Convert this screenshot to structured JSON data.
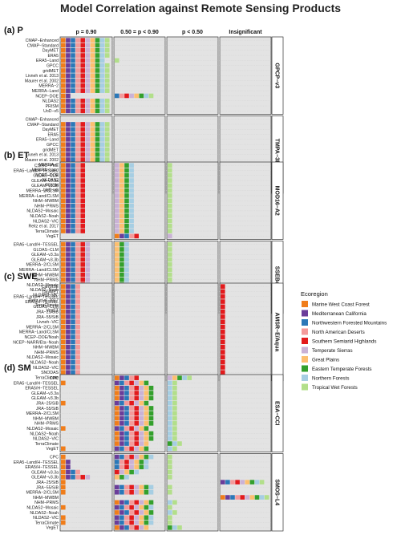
{
  "chart_data": {
    "type": "heatmap",
    "title": "Model Correlation against Remote Sensing Products",
    "columns": [
      "p = 0.90",
      "0.50 = p < 0.90",
      "p < 0.50",
      "Insignificant"
    ],
    "legend": {
      "title": "Ecoregion",
      "placement": "right",
      "items": [
        {
          "name": "Marine West Coast Forest",
          "color": "#f07d1a"
        },
        {
          "name": "Mediterranean California",
          "color": "#6a3d9a"
        },
        {
          "name": "Northwestern Forested Mountains",
          "color": "#2b78b8"
        },
        {
          "name": "North American Deserts",
          "color": "#f49a9a"
        },
        {
          "name": "Southern Semiarid Highlands",
          "color": "#e31a1c"
        },
        {
          "name": "Temperate Sierras",
          "color": "#cab2d6"
        },
        {
          "name": "Great Plains",
          "color": "#fdbf6f"
        },
        {
          "name": "Eastern Temperate Forests",
          "color": "#33a02c"
        },
        {
          "name": "Northern Forests",
          "color": "#a6cee3"
        },
        {
          "name": "Tropical Wet Forests",
          "color": "#b2df8a"
        }
      ]
    },
    "sections": [
      {
        "label": "(a) P",
        "panels": [
          {
            "product": "GPCP−v3",
            "models": [
              "CMAP−Enhanced",
              "CMAP−Standard",
              "DayMET",
              "ERA5",
              "ERA5−Land",
              "GPCC",
              "gridMET",
              "Livneh et al. 2013",
              "Maurer et al. 2002",
              "MERRA−2",
              "MERRA−Land",
              "NCEP−DOE",
              "NLDAS2",
              "PRISM",
              "UoD−v5"
            ],
            "cells": [
              [
                10,
                0,
                0,
                0
              ],
              [
                10,
                0,
                0,
                0
              ],
              [
                10,
                0,
                0,
                0
              ],
              [
                10,
                0,
                0,
                0
              ],
              [
                9,
                1,
                0,
                0
              ],
              [
                10,
                0,
                0,
                0
              ],
              [
                10,
                0,
                0,
                0
              ],
              [
                10,
                0,
                0,
                0
              ],
              [
                10,
                0,
                0,
                0
              ],
              [
                10,
                0,
                0,
                0
              ],
              [
                10,
                0,
                0,
                0
              ],
              [
                2,
                8,
                0,
                0
              ],
              [
                10,
                0,
                0,
                0
              ],
              [
                10,
                0,
                0,
                0
              ],
              [
                10,
                0,
                0,
                0
              ]
            ]
          },
          {
            "product": "TMPA−3B43",
            "models": [
              "CMAP−Enhanced",
              "CMAP−Standard",
              "DayMET",
              "ERA5",
              "ERA5−Land",
              "GPCC",
              "gridMET",
              "Livneh et al. 2013",
              "Maurer et al. 2002",
              "MERRA−2",
              "MERRA−Land",
              "NCEP−DOE",
              "NLDAS2",
              "PRISM",
              "UoD−v5"
            ],
            "cells": [
              [
                0,
                0,
                0,
                0
              ],
              [
                10,
                0,
                0,
                0
              ],
              [
                10,
                0,
                0,
                0
              ],
              [
                10,
                0,
                0,
                0
              ],
              [
                10,
                0,
                0,
                0
              ],
              [
                10,
                0,
                0,
                0
              ],
              [
                10,
                0,
                0,
                0
              ],
              [
                10,
                0,
                0,
                0
              ],
              [
                10,
                0,
                0,
                0
              ],
              [
                10,
                0,
                0,
                10
              ],
              [
                10,
                0,
                0,
                0
              ],
              [
                1,
                9,
                0,
                0
              ],
              [
                10,
                0,
                0,
                0
              ],
              [
                10,
                0,
                0,
                0
              ],
              [
                10,
                0,
                0,
                0
              ]
            ]
          }
        ]
      },
      {
        "label": "(b) ET",
        "panels": [
          {
            "product": "MOD16−A2",
            "models": [
              "CSIRO−PML",
              "ERA5−Land/H−TESSEL",
              "GLDAS−CLM",
              "GLEAM−v3.3a",
              "GLEAM−v3.3b",
              "MERRA−2/CLSM",
              "MERRA−Land/CLSM",
              "NHM−MWBM",
              "NHM−PRMS",
              "NLDAS2−Mosaic",
              "NLDAS2−Noah",
              "NLDAS2−VIC",
              "Reitz et al. 2017",
              "TerraClimate",
              "VegET"
            ],
            "cells": [
              [
                5,
                4,
                1,
                0
              ],
              [
                5,
                4,
                1,
                0
              ],
              [
                5,
                4,
                1,
                0
              ],
              [
                5,
                4,
                1,
                0
              ],
              [
                5,
                4,
                1,
                0
              ],
              [
                5,
                4,
                1,
                0
              ],
              [
                5,
                4,
                1,
                0
              ],
              [
                5,
                4,
                1,
                0
              ],
              [
                5,
                4,
                1,
                0
              ],
              [
                5,
                4,
                1,
                0
              ],
              [
                5,
                4,
                1,
                0
              ],
              [
                5,
                4,
                1,
                0
              ],
              [
                5,
                4,
                1,
                0
              ],
              [
                5,
                4,
                1,
                0
              ],
              [
                0,
                5,
                1,
                0
              ]
            ]
          },
          {
            "product": "SSEBop",
            "models": [
              "ERA5−Land/H−TESSEL",
              "GLDAS−CLM",
              "GLEAM−v3.3a",
              "GLEAM−v3.3b",
              "MERRA−2/CLSM",
              "MERRA−Land/CLSM",
              "NHM−MWBM",
              "NHM−PRMS",
              "NLDAS2−Mosaic",
              "NLDAS2−Noah",
              "NLDAS2−VIC",
              "Reitz et al. 2017",
              "TerraClimate",
              "VegET"
            ],
            "cells": [
              [
                6,
                3,
                1,
                0
              ],
              [
                6,
                3,
                1,
                0
              ],
              [
                6,
                3,
                1,
                0
              ],
              [
                6,
                3,
                1,
                0
              ],
              [
                6,
                3,
                1,
                0
              ],
              [
                6,
                3,
                1,
                0
              ],
              [
                6,
                3,
                1,
                0
              ],
              [
                6,
                3,
                1,
                0
              ],
              [
                6,
                3,
                1,
                0
              ],
              [
                6,
                3,
                1,
                0
              ],
              [
                6,
                3,
                1,
                0
              ],
              [
                6,
                3,
                1,
                0
              ],
              [
                6,
                3,
                1,
                0
              ],
              [
                6,
                3,
                1,
                0
              ]
            ]
          }
        ]
      },
      {
        "label": "(c) SWE",
        "panels": [
          {
            "product": "AMSR−E/Aqua",
            "models": [
              "CanSISE",
              "DayMET",
              "ERA5−Land/H−TESSEL",
              "ERA5/H−TESSEL",
              "GLDAS−CLM",
              "JRA−25/SiB",
              "JRA−55/SiB",
              "Livneh−VIC",
              "MERRA−2/CLSM",
              "MERRA−Land/CLSM",
              "NCEP−DOE/Noah",
              "NCEP−NARR/Eta−Noah",
              "NHM−MWBM",
              "NHM−PRMS",
              "NLDAS2−Mosaic",
              "NLDAS2−Noah",
              "NLDAS2−VIC",
              "SNODAS",
              "TerraClimate"
            ],
            "cells": [
              [
                4,
                0,
                0,
                1
              ],
              [
                4,
                0,
                0,
                1
              ],
              [
                4,
                0,
                0,
                1
              ],
              [
                4,
                0,
                0,
                1
              ],
              [
                4,
                0,
                0,
                1
              ],
              [
                4,
                0,
                0,
                1
              ],
              [
                4,
                0,
                0,
                1
              ],
              [
                4,
                0,
                0,
                1
              ],
              [
                4,
                0,
                0,
                1
              ],
              [
                4,
                0,
                0,
                1
              ],
              [
                4,
                0,
                0,
                1
              ],
              [
                4,
                0,
                0,
                1
              ],
              [
                4,
                0,
                0,
                1
              ],
              [
                4,
                0,
                0,
                1
              ],
              [
                4,
                0,
                0,
                1
              ],
              [
                4,
                0,
                0,
                1
              ],
              [
                4,
                0,
                0,
                1
              ],
              [
                4,
                0,
                0,
                1
              ],
              [
                4,
                0,
                0,
                1
              ]
            ]
          }
        ]
      },
      {
        "label": "(d) SM",
        "panels": [
          {
            "product": "ESA−CCI",
            "models": [
              "CPC",
              "ERA5−Land/H−TESSEL",
              "ERA5/H−TESSEL",
              "GLEAM−v3.3a",
              "GLEAM−v3.3b",
              "JRA−25/SiB",
              "JRA−55/SiB",
              "MERRA−2/CLSM",
              "NHM−MWBM",
              "NHM−PRMS",
              "NLDAS2−Mosaic",
              "NLDAS2−Noah",
              "NLDAS2−VIC",
              "TerraClimate",
              "VegET"
            ],
            "cells": [
              [
                0,
                5,
                5,
                0
              ],
              [
                1,
                7,
                2,
                0
              ],
              [
                0,
                8,
                2,
                0
              ],
              [
                0,
                8,
                2,
                0
              ],
              [
                0,
                8,
                2,
                0
              ],
              [
                1,
                7,
                2,
                0
              ],
              [
                0,
                8,
                2,
                0
              ],
              [
                0,
                8,
                2,
                0
              ],
              [
                0,
                8,
                2,
                0
              ],
              [
                0,
                8,
                2,
                0
              ],
              [
                1,
                7,
                2,
                0
              ],
              [
                0,
                8,
                2,
                0
              ],
              [
                0,
                8,
                2,
                0
              ],
              [
                0,
                7,
                3,
                0
              ],
              [
                1,
                7,
                2,
                0
              ]
            ]
          },
          {
            "product": "SMOS−L4",
            "models": [
              "CPC",
              "ERA5−Land/H−TESSEL",
              "ERA5/H−TESSEL",
              "GLEAM−v3.3a",
              "GLEAM−v3.3b",
              "JRA−25/SiB",
              "JRA−55/SiB",
              "MERRA−2/CLSM",
              "NHM−MWBM",
              "NHM−PRMS",
              "NLDAS2−Mosaic",
              "NLDAS2−Noah",
              "NLDAS2−VIC",
              "TerraClimate",
              "VegET"
            ],
            "cells": [
              [
                1,
                8,
                1,
                0
              ],
              [
                2,
                7,
                1,
                0
              ],
              [
                2,
                7,
                1,
                0
              ],
              [
                4,
                5,
                1,
                0
              ],
              [
                6,
                3,
                1,
                0
              ],
              [
                1,
                0,
                0,
                9
              ],
              [
                1,
                8,
                1,
                0
              ],
              [
                1,
                8,
                1,
                0
              ],
              [
                0,
                0,
                0,
                10
              ],
              [
                0,
                8,
                2,
                0
              ],
              [
                1,
                8,
                1,
                0
              ],
              [
                0,
                8,
                2,
                0
              ],
              [
                1,
                8,
                1,
                0
              ],
              [
                1,
                8,
                1,
                0
              ],
              [
                0,
                7,
                3,
                0
              ]
            ]
          }
        ]
      }
    ]
  }
}
